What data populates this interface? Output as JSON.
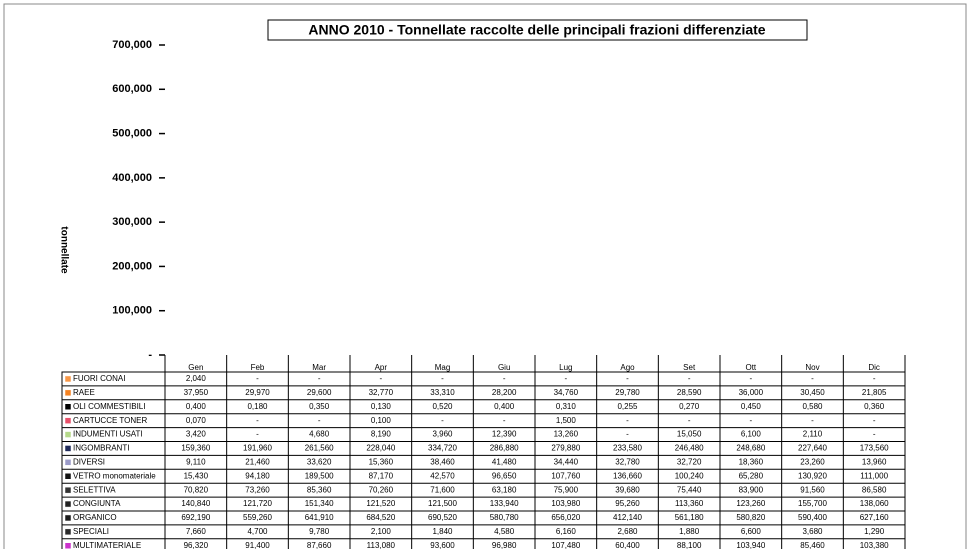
{
  "chart_data": {
    "type": "bar",
    "title": "ANNO 2010 - Tonnellate raccolte delle principali frazioni differenziate",
    "y_label": "tonnellate",
    "categories": [
      "Gen",
      "Feb",
      "Mar",
      "Apr",
      "Mag",
      "Giu",
      "Lug",
      "Ago",
      "Set",
      "Ott",
      "Nov",
      "Dic"
    ],
    "ylim": [
      0,
      700
    ],
    "yticks": [
      {
        "value": 0,
        "label": "-"
      },
      {
        "value": 100,
        "label": "100,000"
      },
      {
        "value": 200,
        "label": "200,000"
      },
      {
        "value": 300,
        "label": "300,000"
      },
      {
        "value": 400,
        "label": "400,000"
      },
      {
        "value": 500,
        "label": "500,000"
      },
      {
        "value": 600,
        "label": "600,000"
      },
      {
        "value": 700,
        "label": "700,000"
      }
    ],
    "series": [
      {
        "name": "FUORI CONAI",
        "color": "#f79646",
        "values": [
          2.04,
          0,
          0,
          0,
          0,
          0,
          0,
          0,
          0,
          0,
          0,
          0
        ],
        "value_labels": [
          "2,040",
          "-",
          "-",
          "-",
          "-",
          "-",
          "-",
          "-",
          "-",
          "-",
          "-",
          "-"
        ]
      },
      {
        "name": "RAEE",
        "color": "#f58220",
        "values": [
          37.95,
          29.97,
          29.6,
          32.77,
          33.31,
          28.2,
          34.76,
          29.78,
          28.59,
          36,
          30.45,
          21.805
        ],
        "value_labels": [
          "37,950",
          "29,970",
          "29,600",
          "32,770",
          "33,310",
          "28,200",
          "34,760",
          "29,780",
          "28,590",
          "36,000",
          "30,450",
          "21,805"
        ]
      },
      {
        "name": "OLI COMMESTIBILI",
        "color": "#000000",
        "values": [
          0.4,
          0.18,
          0.35,
          0.13,
          0.52,
          0.4,
          0.31,
          0.255,
          0.27,
          0.45,
          0.58,
          0.36
        ],
        "value_labels": [
          "0,400",
          "0,180",
          "0,350",
          "0,130",
          "0,520",
          "0,400",
          "0,310",
          "0,255",
          "0,270",
          "0,450",
          "0,580",
          "0,360"
        ]
      },
      {
        "name": "CARTUCCE TONER",
        "color": "#e8506a",
        "values": [
          0.07,
          0,
          0,
          0.1,
          0,
          0,
          1.5,
          0,
          0,
          0,
          0,
          0
        ],
        "value_labels": [
          "0,070",
          "-",
          "-",
          "0,100",
          "-",
          "-",
          "1,500",
          "-",
          "-",
          "-",
          "-",
          "-"
        ]
      },
      {
        "name": "INDUMENTI USATI",
        "color": "#b5d98a",
        "values": [
          3.42,
          0,
          4.68,
          8.19,
          3.96,
          12.39,
          13.26,
          0,
          15.05,
          6.1,
          2.11,
          0
        ],
        "value_labels": [
          "3,420",
          "-",
          "4,680",
          "8,190",
          "3,960",
          "12,390",
          "13,260",
          "-",
          "15,050",
          "6,100",
          "2,110",
          "-"
        ]
      },
      {
        "name": "INGOMBRANTI",
        "color": "#1f2a5a",
        "values": [
          159.36,
          191.96,
          261.56,
          228.04,
          334.72,
          286.88,
          279.88,
          233.58,
          246.48,
          248.68,
          227.64,
          173.56
        ],
        "value_labels": [
          "159,360",
          "191,960",
          "261,560",
          "228,040",
          "334,720",
          "286,880",
          "279,880",
          "233,580",
          "246,480",
          "248,680",
          "227,640",
          "173,560"
        ]
      },
      {
        "name": "DIVERSI",
        "color": "#9a9ac8",
        "values": [
          9.11,
          21.46,
          33.62,
          15.36,
          38.46,
          41.48,
          34.44,
          32.78,
          32.72,
          18.36,
          23.26,
          13.96
        ],
        "value_labels": [
          "9,110",
          "21,460",
          "33,620",
          "15,360",
          "38,460",
          "41,480",
          "34,440",
          "32,780",
          "32,720",
          "18,360",
          "23,260",
          "13,960"
        ]
      },
      {
        "name": "VETRO monomateriale",
        "color": "#111111",
        "values": [
          15.43,
          94.18,
          189.5,
          87.17,
          42.57,
          96.65,
          107.76,
          136.66,
          100.24,
          65.28,
          130.92,
          111
        ],
        "value_labels": [
          "15,430",
          "94,180",
          "189,500",
          "87,170",
          "42,570",
          "96,650",
          "107,760",
          "136,660",
          "100,240",
          "65,280",
          "130,920",
          "111,000"
        ]
      },
      {
        "name": "SELETTIVA",
        "color": "#333333",
        "values": [
          70.82,
          73.26,
          85.36,
          70.26,
          71.6,
          63.18,
          75.9,
          39.68,
          75.44,
          83.9,
          91.56,
          86.58
        ],
        "value_labels": [
          "70,820",
          "73,260",
          "85,360",
          "70,260",
          "71,600",
          "63,180",
          "75,900",
          "39,680",
          "75,440",
          "83,900",
          "91,560",
          "86,580"
        ]
      },
      {
        "name": "CONGIUNTA",
        "color": "#222222",
        "values": [
          140.84,
          121.72,
          151.34,
          121.52,
          121.5,
          133.94,
          103.98,
          95.26,
          113.36,
          123.26,
          155.7,
          138.06
        ],
        "value_labels": [
          "140,840",
          "121,720",
          "151,340",
          "121,520",
          "121,500",
          "133,940",
          "103,980",
          "95,260",
          "113,360",
          "123,260",
          "155,700",
          "138,060"
        ]
      },
      {
        "name": "ORGANICO",
        "color": "#1a1a1a",
        "values": [
          692.19,
          559.26,
          641.91,
          684.52,
          690.52,
          580.78,
          656.02,
          412.14,
          561.18,
          580.82,
          590.4,
          627.16
        ],
        "value_labels": [
          "692,190",
          "559,260",
          "641,910",
          "684,520",
          "690,520",
          "580,780",
          "656,020",
          "412,140",
          "561,180",
          "580,820",
          "590,400",
          "627,160"
        ]
      },
      {
        "name": "SPECIALI",
        "color": "#2b2b2b",
        "values": [
          7.66,
          4.7,
          9.78,
          2.1,
          1.84,
          4.58,
          6.16,
          2.68,
          1.88,
          6.6,
          3.68,
          1.29
        ],
        "value_labels": [
          "7,660",
          "4,700",
          "9,780",
          "2,100",
          "1,840",
          "4,580",
          "6,160",
          "2,680",
          "1,880",
          "6,600",
          "3,680",
          "1,290"
        ]
      },
      {
        "name": "MULTIMATERIALE",
        "color": "#cc33cc",
        "values": [
          96.32,
          91.4,
          87.66,
          113.08,
          93.6,
          96.98,
          107.48,
          60.4,
          88.1,
          103.94,
          85.46,
          103.38
        ],
        "value_labels": [
          "96,320",
          "91,400",
          "87,660",
          "113,080",
          "93,600",
          "96,980",
          "107,480",
          "60,400",
          "88,100",
          "103,940",
          "85,460",
          "103,380"
        ]
      }
    ]
  }
}
